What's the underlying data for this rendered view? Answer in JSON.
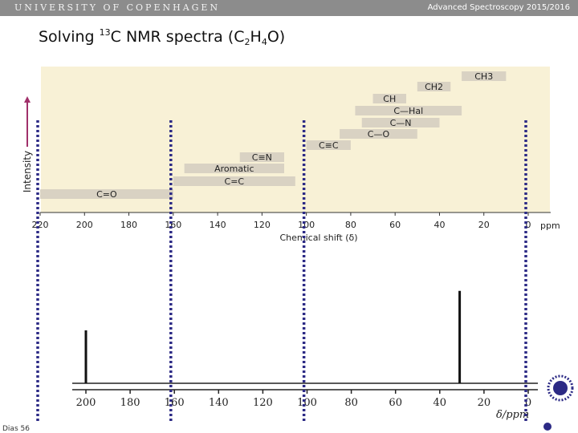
{
  "header": {
    "university": "UNIVERSITY OF COPENHAGEN",
    "course": "Advanced Spectroscopy 2015/2016"
  },
  "slide": {
    "title_prefix": "Solving ",
    "title_isotope": "13",
    "title_middle": "C NMR spectra (C",
    "title_sub1": "2",
    "title_h": "H",
    "title_sub2": "4",
    "title_end": "O)",
    "footer": "Dias 56"
  },
  "colors": {
    "header_bar": "#8c8c8c",
    "chart_bg": "#f8f1d6",
    "band": "#d9d2c3",
    "arrow": "#a0306a",
    "dotted_line": "#2c2a85"
  },
  "chart_data": [
    {
      "type": "range-chart",
      "ylabel": "Intensity",
      "xlabel": "Chemical shift (δ)",
      "x_unit": "ppm",
      "x_ticks": [
        220,
        200,
        180,
        160,
        140,
        120,
        100,
        80,
        60,
        40,
        20,
        0
      ],
      "xlim": [
        220,
        0
      ],
      "bands": [
        {
          "label": "CH3",
          "from": 30,
          "to": 10
        },
        {
          "label": "CH2",
          "from": 50,
          "to": 35
        },
        {
          "label": "CH",
          "from": 70,
          "to": 55
        },
        {
          "label": "C—Hal",
          "from": 78,
          "to": 30
        },
        {
          "label": "C—N",
          "from": 75,
          "to": 40
        },
        {
          "label": "C—O",
          "from": 85,
          "to": 50
        },
        {
          "label": "C≡C",
          "from": 100,
          "to": 80
        },
        {
          "label": "C≡N",
          "from": 130,
          "to": 110
        },
        {
          "label": "Aromatic",
          "from": 155,
          "to": 110
        },
        {
          "label": "C=C",
          "from": 160,
          "to": 105
        },
        {
          "label": "C=O",
          "from": 220,
          "to": 160
        }
      ]
    },
    {
      "type": "spectrum",
      "xlabel": "δ/ppm",
      "x_ticks": [
        200,
        180,
        160,
        140,
        120,
        100,
        80,
        60,
        40,
        20,
        0
      ],
      "xlim": [
        205,
        0
      ],
      "peaks": [
        {
          "x": 200,
          "height": 0.55
        },
        {
          "x": 31,
          "height": 0.96
        }
      ]
    }
  ],
  "dotted_marks_ppm": [
    220,
    160,
    100,
    0
  ]
}
